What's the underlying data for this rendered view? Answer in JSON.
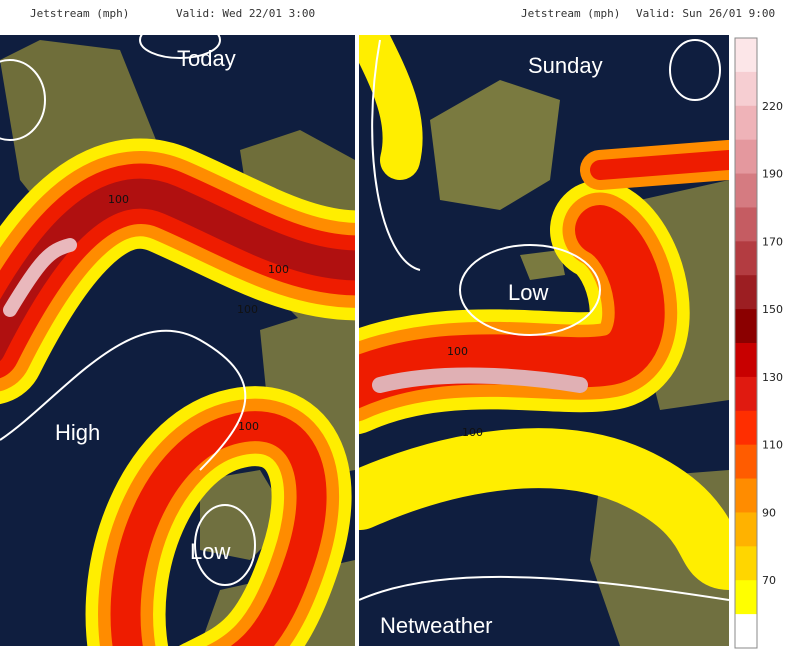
{
  "panels": [
    {
      "header": "Jetstream (mph)",
      "valid": "Valid: Wed 22/01 3:00",
      "day_label": "Today",
      "pressure_labels": [
        "High",
        "Low"
      ],
      "contour_labels": [
        "100",
        "100",
        "100",
        "100"
      ]
    },
    {
      "header": "Jetstream (mph)",
      "valid": "Valid: Sun 26/01 9:00",
      "day_label": "Sunday",
      "pressure_labels": [
        "Low"
      ],
      "contour_labels": [
        "100",
        "100"
      ],
      "credit": "Netweather"
    }
  ],
  "colorbar": {
    "labels": [
      "220",
      "190",
      "170",
      "150",
      "130",
      "110",
      "90",
      "70"
    ]
  }
}
